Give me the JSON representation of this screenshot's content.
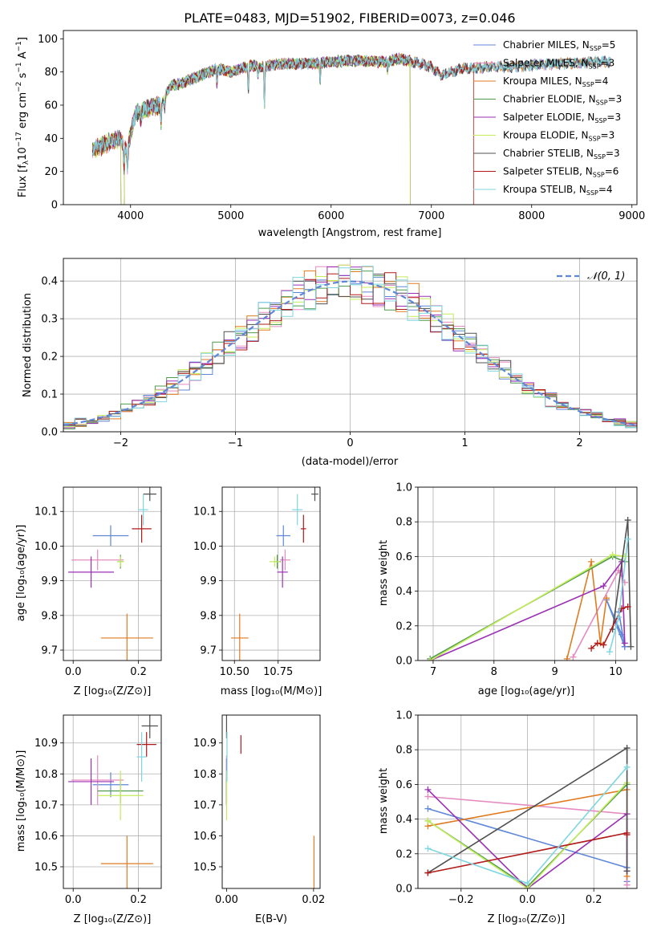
{
  "colors": {
    "chabrier_miles": "#5f87d8",
    "salpeter_miles": "#e58bc0",
    "kroupa_miles": "#e07b20",
    "chabrier_elodie": "#4f9a4f",
    "salpeter_elodie": "#9b30b5",
    "kroupa_elodie": "#c5ec5a",
    "chabrier_stelib": "#505050",
    "salpeter_stelib": "#b21a1a",
    "kroupa_stelib": "#7fd6e0",
    "gaussian": "#5f87d8"
  },
  "chart_data": [
    {
      "type": "line",
      "title": "PLATE=0483, MJD=51902, FIBERID=0073, z=0.046",
      "xlabel": "wavelength [Angstrom, rest frame]",
      "ylabel": "Flux [f_λ10⁻¹⁷ erg cm⁻² s⁻¹ A⁻¹]",
      "xlim": [
        3330,
        9050
      ],
      "ylim": [
        0,
        105
      ],
      "xticks": [
        "4000",
        "5000",
        "6000",
        "7000",
        "8000",
        "9000"
      ],
      "yticks": [
        "0",
        "20",
        "40",
        "60",
        "80",
        "100"
      ],
      "legend": "top-right",
      "series": [
        {
          "name": "Chabrier MILES, N_SSP=5",
          "color_key": "chabrier_miles",
          "x_range": [
            3620,
            8790
          ]
        },
        {
          "name": "Salpeter MILES, N_SSP=3",
          "color_key": "salpeter_miles",
          "x_range": [
            3620,
            8790
          ]
        },
        {
          "name": "Kroupa MILES, N_SSP=4",
          "color_key": "kroupa_miles",
          "x_range": [
            3620,
            8790
          ]
        },
        {
          "name": "Chabrier ELODIE, N_SSP=3",
          "color_key": "chabrier_elodie",
          "x_range": [
            3620,
            6790
          ]
        },
        {
          "name": "Salpeter ELODIE, N_SSP=3",
          "color_key": "salpeter_elodie",
          "x_range": [
            3620,
            6790
          ]
        },
        {
          "name": "Kroupa ELODIE, N_SSP=3",
          "color_key": "kroupa_elodie",
          "x_range": [
            3620,
            6790
          ]
        },
        {
          "name": "Chabrier STELIB, N_SSP=3",
          "color_key": "chabrier_stelib",
          "x_range": [
            3620,
            8790
          ]
        },
        {
          "name": "Salpeter STELIB, N_SSP=6",
          "color_key": "salpeter_stelib",
          "x_range": [
            3620,
            7420
          ]
        },
        {
          "name": "Kroupa STELIB, N_SSP=4",
          "color_key": "kroupa_stelib",
          "x_range": [
            3620,
            8790
          ]
        }
      ],
      "continuum_knots": {
        "x": [
          3620,
          3700,
          3800,
          3900,
          3960,
          4050,
          4150,
          4300,
          4400,
          4500,
          4700,
          4860,
          5000,
          5200,
          5300,
          5500,
          5800,
          6000,
          6200,
          6500,
          6700,
          6880,
          7000,
          7100,
          7300,
          7600,
          7800,
          8000,
          8200,
          8400,
          8600,
          8790
        ],
        "y": [
          33,
          35,
          38,
          40,
          32,
          55,
          58,
          60,
          72,
          73,
          78,
          82,
          80,
          84,
          83,
          85,
          85,
          86,
          87,
          86,
          88,
          85,
          83,
          78,
          82,
          83,
          83,
          84,
          85,
          85,
          86,
          86
        ]
      },
      "absorption_lines": [
        {
          "x": 3934,
          "depth": 14
        },
        {
          "x": 3969,
          "depth": 12
        },
        {
          "x": 4102,
          "depth": 6
        },
        {
          "x": 4304,
          "depth": 12
        },
        {
          "x": 4340,
          "depth": 6
        },
        {
          "x": 4861,
          "depth": 10
        },
        {
          "x": 5175,
          "depth": 14
        },
        {
          "x": 5270,
          "depth": 6
        },
        {
          "x": 5335,
          "depth": 25
        },
        {
          "x": 5890,
          "depth": 12
        },
        {
          "x": 6563,
          "depth": 6
        }
      ]
    },
    {
      "type": "area",
      "xlabel": "(data-model)/error",
      "ylabel": "Normed distribution",
      "xlim": [
        -2.5,
        2.5
      ],
      "ylim": [
        0,
        0.46
      ],
      "xticks": [
        -2,
        -1,
        0,
        1,
        2
      ],
      "yticks": [
        0.0,
        0.1,
        0.2,
        0.3,
        0.4
      ],
      "grid": true,
      "legend": "top-right",
      "gaussian": {
        "name": "𝒩(0, 1)",
        "mean": 0,
        "sigma": 1
      },
      "bin_width": 0.1,
      "series_keys": [
        "chabrier_miles",
        "salpeter_miles",
        "kroupa_miles",
        "chabrier_elodie",
        "salpeter_elodie",
        "kroupa_elodie",
        "chabrier_stelib",
        "salpeter_stelib",
        "kroupa_stelib"
      ]
    },
    {
      "type": "scatter",
      "xlabel": "Z [log₁₀(Z/Z⊙)]",
      "ylabel": "age  [log₁₀(age/yr)]",
      "xlim": [
        -0.03,
        0.27
      ],
      "ylim": [
        9.67,
        10.17
      ],
      "xticks": [
        "0.0",
        "0.2"
      ],
      "yticks": [
        "9.7",
        "9.8",
        "9.9",
        "10.0",
        "10.1"
      ],
      "grid": true,
      "points": [
        {
          "key": "chabrier_miles",
          "x": 0.115,
          "y": 10.03,
          "xerr": 0.055,
          "yerr": 0.03
        },
        {
          "key": "salpeter_miles",
          "x": 0.075,
          "y": 9.96,
          "xerr": 0.08,
          "yerr": 0.03
        },
        {
          "key": "kroupa_miles",
          "x": 0.165,
          "y": 9.735,
          "xerr": 0.08,
          "yerr": 0.07
        },
        {
          "key": "chabrier_elodie",
          "x": 0.145,
          "y": 9.955,
          "xerr": 0.01,
          "yerr": 0.02
        },
        {
          "key": "salpeter_elodie",
          "x": 0.055,
          "y": 9.925,
          "xerr": 0.07,
          "yerr": 0.045
        },
        {
          "key": "kroupa_elodie",
          "x": 0.145,
          "y": 9.955,
          "xerr": 0.01,
          "yerr": 0.015
        },
        {
          "key": "chabrier_stelib",
          "x": 0.235,
          "y": 10.15,
          "xerr": 0.02,
          "yerr": 0.02
        },
        {
          "key": "salpeter_stelib",
          "x": 0.21,
          "y": 10.05,
          "xerr": 0.03,
          "yerr": 0.04
        },
        {
          "key": "kroupa_stelib",
          "x": 0.215,
          "y": 10.105,
          "xerr": 0.015,
          "yerr": 0.045
        }
      ]
    },
    {
      "type": "scatter",
      "xlabel": "mass [log₁₀(M/M⊙)]",
      "ylabel": "",
      "xlim": [
        10.43,
        10.99
      ],
      "ylim": [
        9.67,
        10.17
      ],
      "xticks": [
        "10.50",
        "10.75"
      ],
      "yticks": [
        "9.7",
        "9.8",
        "9.9",
        "10.0",
        "10.1"
      ],
      "grid": true,
      "points": [
        {
          "key": "chabrier_miles",
          "x": 10.78,
          "y": 10.03,
          "xerr": 0.04,
          "yerr": 0.03
        },
        {
          "key": "salpeter_miles",
          "x": 10.79,
          "y": 9.96,
          "xerr": 0.03,
          "yerr": 0.03
        },
        {
          "key": "kroupa_miles",
          "x": 10.53,
          "y": 9.735,
          "xerr": 0.05,
          "yerr": 0.07
        },
        {
          "key": "chabrier_elodie",
          "x": 10.745,
          "y": 9.955,
          "xerr": 0.02,
          "yerr": 0.02
        },
        {
          "key": "salpeter_elodie",
          "x": 10.775,
          "y": 9.925,
          "xerr": 0.03,
          "yerr": 0.045
        },
        {
          "key": "kroupa_elodie",
          "x": 10.73,
          "y": 9.955,
          "xerr": 0.03,
          "yerr": 0.015
        },
        {
          "key": "chabrier_stelib",
          "x": 10.96,
          "y": 10.15,
          "xerr": 0.02,
          "yerr": 0.02
        },
        {
          "key": "salpeter_stelib",
          "x": 10.895,
          "y": 10.05,
          "xerr": 0.015,
          "yerr": 0.04
        },
        {
          "key": "kroupa_stelib",
          "x": 10.86,
          "y": 10.105,
          "xerr": 0.03,
          "yerr": 0.045
        }
      ]
    },
    {
      "type": "line",
      "xlabel": "age  [log₁₀(age/yr)]",
      "ylabel": "mass weight",
      "xlim": [
        6.75,
        10.35
      ],
      "ylim": [
        0,
        1
      ],
      "xticks": [
        7,
        8,
        9,
        10
      ],
      "yticks": [
        "0.0",
        "0.2",
        "0.4",
        "0.6",
        "0.8",
        "1.0"
      ],
      "grid": true,
      "series": [
        {
          "key": "chabrier_miles",
          "x": [
            10.1,
            9.85,
            10.15,
            10.05,
            10.15
          ],
          "y": [
            0.15,
            0.35,
            0.08,
            0.28,
            0.08
          ]
        },
        {
          "key": "salpeter_miles",
          "x": [
            9.3,
            10.05,
            10.15
          ],
          "y": [
            0.02,
            0.52,
            0.45
          ]
        },
        {
          "key": "kroupa_miles",
          "x": [
            9.2,
            9.6,
            9.75,
            9.85
          ],
          "y": [
            0.01,
            0.57,
            0.1,
            0.36
          ]
        },
        {
          "key": "chabrier_elodie",
          "x": [
            6.95,
            9.95,
            10.15
          ],
          "y": [
            0.01,
            0.6,
            0.57
          ]
        },
        {
          "key": "salpeter_elodie",
          "x": [
            6.95,
            9.8,
            10.1,
            10.15
          ],
          "y": [
            0.0,
            0.43,
            0.57,
            0.1
          ]
        },
        {
          "key": "kroupa_elodie",
          "x": [
            6.95,
            9.95,
            10.15
          ],
          "y": [
            0.0,
            0.61,
            0.6
          ]
        },
        {
          "key": "chabrier_stelib",
          "x": [
            9.95,
            10.2,
            10.25
          ],
          "y": [
            0.18,
            0.81,
            0.08
          ]
        },
        {
          "key": "salpeter_stelib",
          "x": [
            9.6,
            9.7,
            9.8,
            10.1,
            10.2
          ],
          "y": [
            0.07,
            0.1,
            0.09,
            0.3,
            0.31
          ]
        },
        {
          "key": "kroupa_stelib",
          "x": [
            9.9,
            10.05,
            10.2
          ],
          "y": [
            0.05,
            0.25,
            0.7
          ]
        }
      ]
    },
    {
      "type": "scatter",
      "xlabel": "Z [log₁₀(Z/Z⊙)]",
      "ylabel": "mass [log₁₀(M/M⊙)]",
      "xlim": [
        -0.03,
        0.27
      ],
      "ylim": [
        10.43,
        10.99
      ],
      "xticks": [
        "0.0",
        "0.2"
      ],
      "yticks": [
        "10.5",
        "10.6",
        "10.7",
        "10.8",
        "10.9"
      ],
      "grid": true,
      "points": [
        {
          "key": "chabrier_miles",
          "x": 0.115,
          "y": 10.765,
          "xerr": 0.055,
          "yerr": 0.04
        },
        {
          "key": "salpeter_miles",
          "x": 0.075,
          "y": 10.78,
          "xerr": 0.08,
          "yerr": 0.08
        },
        {
          "key": "kroupa_miles",
          "x": 0.165,
          "y": 10.51,
          "xerr": 0.08,
          "yerr": 0.09
        },
        {
          "key": "chabrier_elodie",
          "x": 0.145,
          "y": 10.745,
          "xerr": 0.07,
          "yerr": 0.04
        },
        {
          "key": "salpeter_elodie",
          "x": 0.055,
          "y": 10.775,
          "xerr": 0.07,
          "yerr": 0.075
        },
        {
          "key": "kroupa_elodie",
          "x": 0.145,
          "y": 10.73,
          "xerr": 0.07,
          "yerr": 0.08
        },
        {
          "key": "chabrier_stelib",
          "x": 0.235,
          "y": 10.955,
          "xerr": 0.025,
          "yerr": 0.04
        },
        {
          "key": "salpeter_stelib",
          "x": 0.225,
          "y": 10.895,
          "xerr": 0.03,
          "yerr": 0.04
        },
        {
          "key": "kroupa_stelib",
          "x": 0.21,
          "y": 10.855,
          "xerr": 0.015,
          "yerr": 0.08
        }
      ]
    },
    {
      "type": "scatter",
      "xlabel": "E(B-V)",
      "ylabel": "",
      "xlim": [
        -0.001,
        0.0215
      ],
      "ylim": [
        10.43,
        10.99
      ],
      "xticks": [
        "0.00",
        "0.02"
      ],
      "yticks": [
        "10.5",
        "10.6",
        "10.7",
        "10.8",
        "10.9"
      ],
      "grid": false,
      "points": [
        {
          "key": "chabrier_miles",
          "x": 0.0,
          "y": 10.765,
          "xerr": 0,
          "yerr": 0.04
        },
        {
          "key": "salpeter_miles",
          "x": 0.0,
          "y": 10.78,
          "xerr": 0,
          "yerr": 0.08
        },
        {
          "key": "kroupa_miles",
          "x": 0.0201,
          "y": 10.51,
          "xerr": 0,
          "yerr": 0.09
        },
        {
          "key": "chabrier_elodie",
          "x": 0.0,
          "y": 10.745,
          "xerr": 0,
          "yerr": 0.04
        },
        {
          "key": "salpeter_elodie",
          "x": 0.0,
          "y": 10.775,
          "xerr": 0,
          "yerr": 0.075
        },
        {
          "key": "kroupa_elodie",
          "x": 0.0,
          "y": 10.73,
          "xerr": 0,
          "yerr": 0.08
        },
        {
          "key": "chabrier_stelib",
          "x": 0.0,
          "y": 10.955,
          "xerr": 0,
          "yerr": 0.04
        },
        {
          "key": "salpeter_stelib",
          "x": 0.0033,
          "y": 10.895,
          "xerr": 0,
          "yerr": 0.03
        },
        {
          "key": "kroupa_stelib",
          "x": 0.0001,
          "y": 10.855,
          "xerr": 0,
          "yerr": 0.08
        }
      ]
    },
    {
      "type": "line",
      "xlabel": "Z [log₁₀(Z/Z⊙)]",
      "ylabel": "mass weight",
      "xlim": [
        -0.33,
        0.33
      ],
      "ylim": [
        0,
        1
      ],
      "xticks": [
        "−0.2",
        "0.0",
        "0.2"
      ],
      "yticks": [
        "0.0",
        "0.2",
        "0.4",
        "0.6",
        "0.8",
        "1.0"
      ],
      "grid": true,
      "series": [
        {
          "key": "chabrier_miles",
          "x": [
            -0.3,
            0.3,
            0.3
          ],
          "y": [
            0.46,
            0.12,
            0.04
          ]
        },
        {
          "key": "salpeter_miles",
          "x": [
            -0.3,
            0.3,
            0.3
          ],
          "y": [
            0.53,
            0.43,
            0.02
          ]
        },
        {
          "key": "kroupa_miles",
          "x": [
            -0.3,
            0.3,
            0.3
          ],
          "y": [
            0.36,
            0.57,
            0.07
          ]
        },
        {
          "key": "chabrier_elodie",
          "x": [
            -0.3,
            0.0,
            0.3
          ],
          "y": [
            0.39,
            0.01,
            0.6
          ]
        },
        {
          "key": "salpeter_elodie",
          "x": [
            -0.3,
            0.0,
            0.3,
            0.3
          ],
          "y": [
            0.57,
            0.0,
            0.43,
            0.1
          ]
        },
        {
          "key": "kroupa_elodie",
          "x": [
            -0.3,
            0.0,
            0.3
          ],
          "y": [
            0.39,
            0.0,
            0.61
          ]
        },
        {
          "key": "chabrier_stelib",
          "x": [
            -0.3,
            0.3,
            0.3
          ],
          "y": [
            0.09,
            0.81,
            0.1
          ]
        },
        {
          "key": "salpeter_stelib",
          "x": [
            -0.3,
            0.3,
            0.3
          ],
          "y": [
            0.09,
            0.32,
            0.31
          ]
        },
        {
          "key": "kroupa_stelib",
          "x": [
            -0.3,
            0.0,
            0.3
          ],
          "y": [
            0.23,
            0.03,
            0.7
          ]
        }
      ]
    }
  ]
}
